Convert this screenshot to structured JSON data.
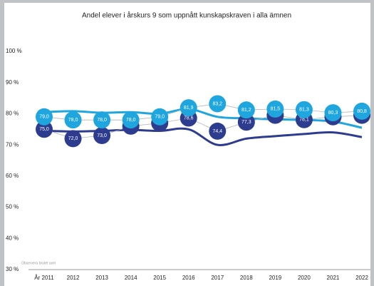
{
  "chart_data": {
    "type": "line",
    "title": "Andel elever i årskurs 9 som uppnått kunskapskraven i alla ämnen",
    "annotation": "Observera brutet axel",
    "categories": [
      "År 2011",
      "2012",
      "2013",
      "2014",
      "2015",
      "2016",
      "2017",
      "2018",
      "2019",
      "2020",
      "2021",
      "2022"
    ],
    "series": [
      {
        "color": "#1fa6df",
        "values": [
          79.0,
          78.0,
          78.0,
          78.0,
          79.0,
          81.9,
          83.2,
          81.2,
          81.5,
          81.3,
          80.3,
          80.8
        ],
        "value_labels": [
          "79,0",
          "78,0",
          "78,0",
          "78,0",
          "79,0",
          "81,9",
          "83,2",
          "81,2",
          "81,5",
          "81,3",
          "80,3",
          "80,8"
        ]
      },
      {
        "color": "#2d3c8e",
        "values": [
          75.0,
          72.0,
          73.0,
          76.0,
          77.0,
          78.6,
          74.4,
          77.3,
          79.5,
          78.1,
          79.0,
          79.5
        ],
        "value_labels": [
          "75,0",
          "72,0",
          "73,0",
          null,
          null,
          "78,6",
          "74,4",
          "77,3",
          null,
          "78,1",
          null,
          null
        ]
      }
    ],
    "trends": [
      {
        "color": "#1fa6df",
        "values": [
          80.5,
          80.8,
          80.3,
          80.5,
          80.0,
          81.5,
          79.0,
          78.5,
          78.2,
          78.0,
          77.5,
          75.5
        ]
      },
      {
        "color": "#2d3c8e",
        "values": [
          74.5,
          74.3,
          74.5,
          74.8,
          74.5,
          75.0,
          70.0,
          72.0,
          72.8,
          73.5,
          74.0,
          72.5
        ]
      }
    ],
    "ylim": [
      30,
      100
    ],
    "yticks": [
      {
        "value": 30,
        "label": "30 %"
      },
      {
        "value": 40,
        "label": "40 %"
      },
      {
        "value": 50,
        "label": "50 %"
      },
      {
        "value": 60,
        "label": "60 %"
      },
      {
        "value": 70,
        "label": "70 %"
      },
      {
        "value": 80,
        "label": "80 %"
      },
      {
        "value": 90,
        "label": "90 %"
      },
      {
        "value": 100,
        "label": "100 %"
      }
    ]
  }
}
